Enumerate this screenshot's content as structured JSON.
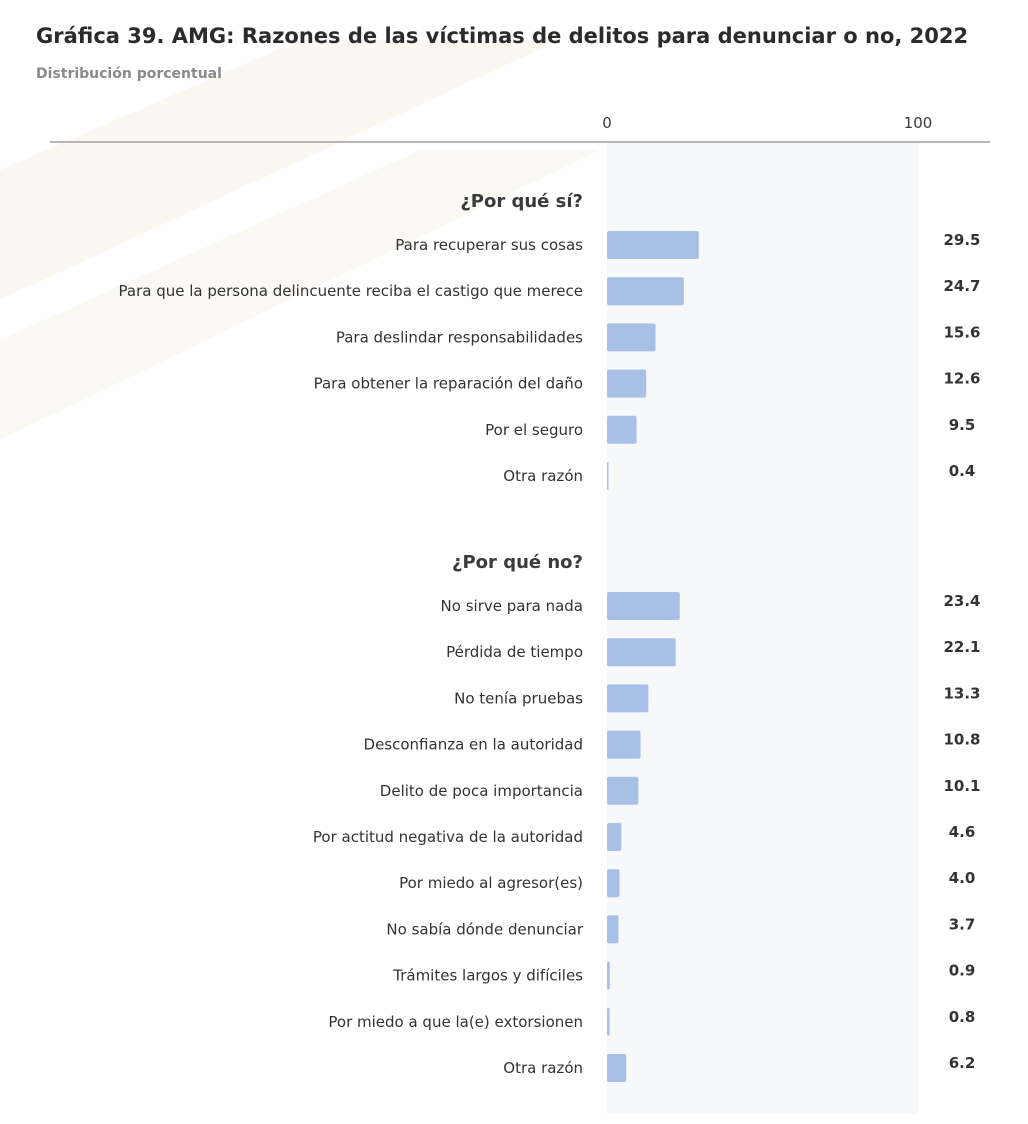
{
  "title": "Gráfica 39. AMG: Razones de las víctimas de delitos para denunciar o no, 2022",
  "subtitle": "Distribución porcentual",
  "colors": {
    "bar": "#a9c0e6",
    "axis_line": "#8c8c8c",
    "plot_band": "#f7f8fa"
  },
  "chart_data": {
    "type": "bar",
    "orientation": "horizontal",
    "x_ticks": [
      0,
      100
    ],
    "xlim": [
      0,
      100
    ],
    "groups": [
      {
        "label": "¿Por qué sí?",
        "categories": [
          "Para recuperar sus cosas",
          "Para que la persona delincuente reciba el castigo que merece",
          "Para deslindar responsabilidades",
          "Para obtener la reparación del daño",
          "Por el seguro",
          "Otra razón"
        ],
        "values": [
          29.5,
          24.7,
          15.6,
          12.6,
          9.5,
          0.4
        ],
        "value_labels": [
          "29.5",
          "24.7",
          "15.6",
          "12.6",
          "9.5",
          "0.4"
        ]
      },
      {
        "label": "¿Por qué no?",
        "categories": [
          "No sirve para nada",
          "Pérdida de tiempo",
          "No tenía pruebas",
          "Desconfianza en la autoridad",
          "Delito de poca importancia",
          "Por actitud negativa de la autoridad",
          "Por miedo al agresor(es)",
          "No sabía dónde denunciar",
          "Trámites largos y difíciles",
          "Por miedo a que la(e) extorsionen",
          "Otra razón"
        ],
        "values": [
          23.4,
          22.1,
          13.3,
          10.8,
          10.1,
          4.6,
          4.0,
          3.7,
          0.9,
          0.8,
          6.2
        ],
        "value_labels": [
          "23.4",
          "22.1",
          "13.3",
          "10.8",
          "10.1",
          "4.6",
          "4.0",
          "3.7",
          "0.9",
          "0.8",
          "6.2"
        ]
      }
    ]
  }
}
